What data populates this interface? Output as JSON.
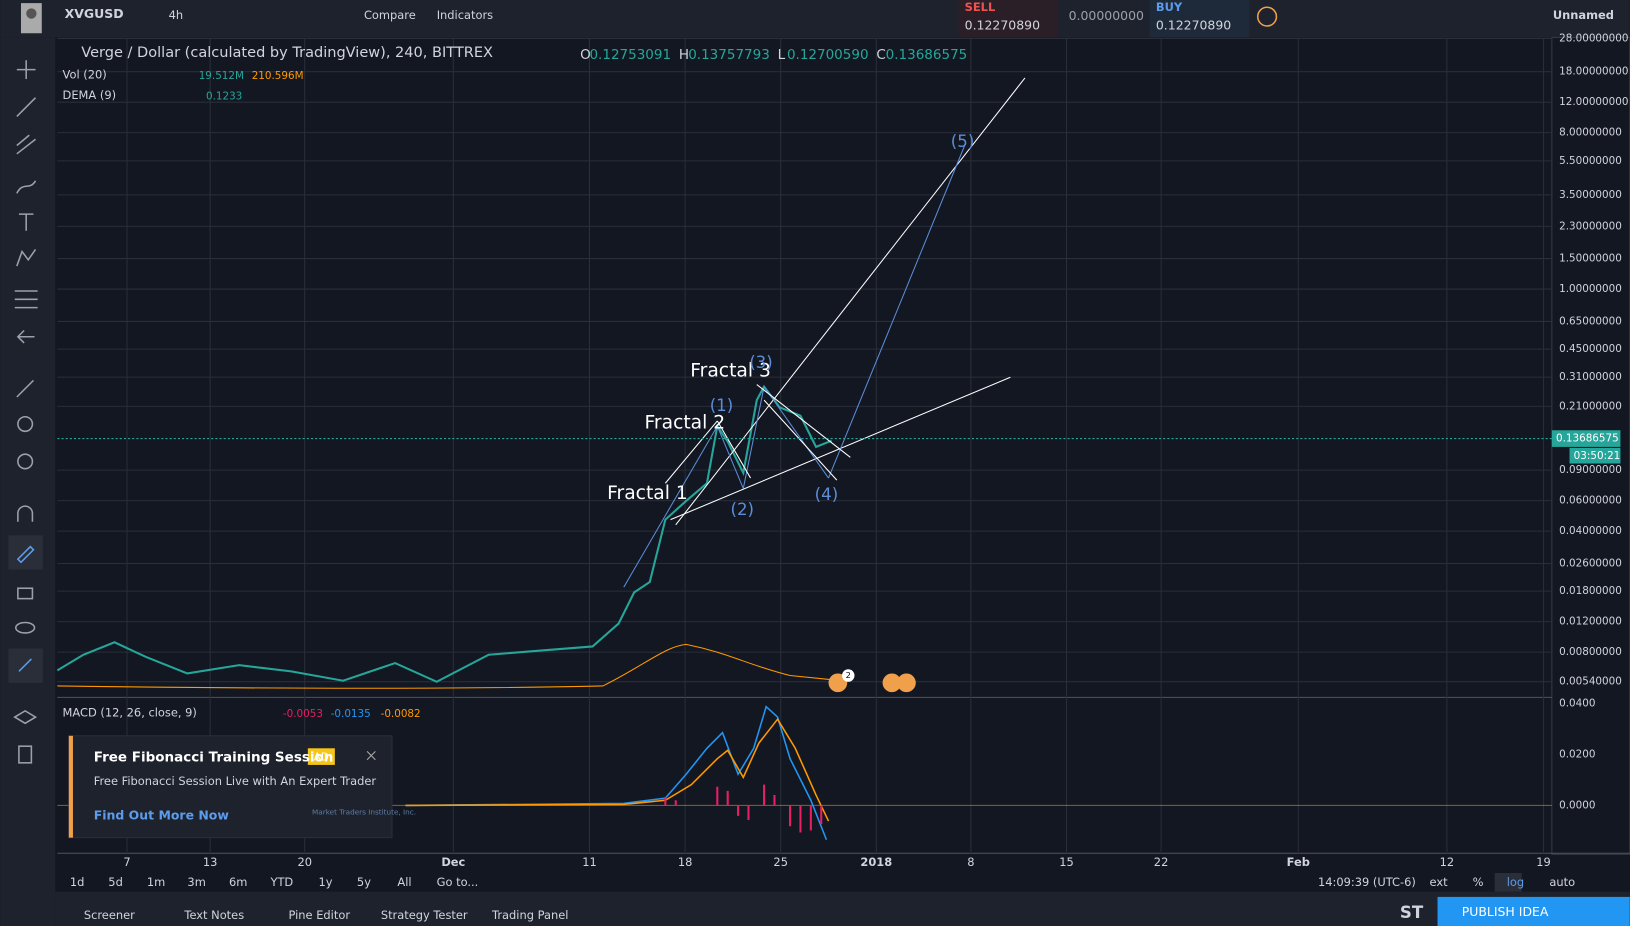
{
  "header": {
    "symbol": "XVGUSD",
    "interval": "4h",
    "compare": "Compare",
    "indicators": "Indicators",
    "sell_label": "SELL",
    "sell_price": "0.12270890",
    "spread": "0.00000000",
    "buy_label": "BUY",
    "buy_price": "0.12270890",
    "layout_name": "Unnamed"
  },
  "legend": {
    "title": "Verge / Dollar (calculated by TradingView), 240, BITTREX",
    "ohlc": [
      {
        "label": "O",
        "value": "0.12753091"
      },
      {
        "label": "H",
        "value": "0.13757793"
      },
      {
        "label": "L",
        "value": "0.12700590"
      },
      {
        "label": "C",
        "value": "0.13686575"
      }
    ],
    "vol": {
      "name": "Vol (20)",
      "values": [
        "19.512M",
        "210.596M"
      ]
    },
    "dema": {
      "name": "DEMA (9)",
      "value": "0.1233"
    }
  },
  "price_axis": [
    "28.00000000",
    "18.00000000",
    "12.00000000",
    "8.00000000",
    "5.50000000",
    "3.50000000",
    "2.30000000",
    "1.50000000",
    "1.00000000",
    "0.65000000",
    "0.45000000",
    "0.31000000",
    "0.21000000",
    "0.09000000",
    "0.06000000",
    "0.04000000",
    "0.02600000",
    "0.01800000",
    "0.01200000",
    "0.00800000",
    "0.00540000"
  ],
  "current_price": "0.13686575",
  "countdown": "03:50:21",
  "annotations": {
    "fractal_1": "Fractal 1",
    "fractal_2": "Fractal 2",
    "fractal_3": "Fractal 3",
    "wave_1": "(1)",
    "wave_2": "(2)",
    "wave_3": "(3)",
    "wave_4": "(4)",
    "wave_5": "(5)"
  },
  "events_badge": "2",
  "macd": {
    "name": "MACD (12, 26, close, 9)",
    "values": [
      "-0.0053",
      "-0.0135",
      "-0.0082"
    ],
    "axis": [
      "0.0400",
      "0.0200",
      "0.0000"
    ]
  },
  "time_axis": [
    "7",
    "13",
    "20",
    "Dec",
    "11",
    "18",
    "25",
    "2018",
    "8",
    "15",
    "22",
    "Feb",
    "12",
    "19"
  ],
  "ranges": [
    "1d",
    "5d",
    "1m",
    "3m",
    "6m",
    "YTD",
    "1y",
    "5y",
    "All",
    "Go to..."
  ],
  "status": {
    "time": "14:09:39 (UTC-6)",
    "options": [
      "ext",
      "%",
      "log",
      "auto"
    ]
  },
  "bottom_tabs": [
    "Screener",
    "Text Notes",
    "Pine Editor",
    "Strategy Tester",
    "Trading Panel"
  ],
  "bottom_right": {
    "st": "ST",
    "publish": "PUBLISH IDEA"
  },
  "ad": {
    "title": "Free Fibonacci Training Session",
    "badge": "AD",
    "text": "Free Fibonacci Session Live with An Expert Trader",
    "link": "Find Out More Now",
    "logo": "Market Traders Institute, Inc."
  }
}
